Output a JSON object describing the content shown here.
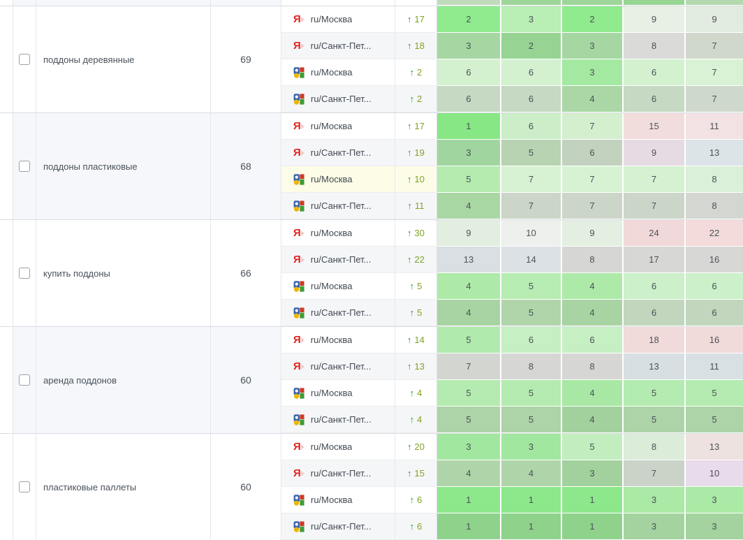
{
  "table": {
    "glyphs": {
      "up_arrow": "↑",
      "yandex_letter": "Я"
    },
    "palette": {
      "change_arrow": "#259b23",
      "change_value": "#7ea324",
      "yandex_red": "#e02420",
      "group_tint": "#f5f7fa",
      "highlight_row": "#fdfce7"
    },
    "partial_top_row": {
      "group_bg": "#f5f7fa",
      "data_cells": [
        "#c0dbbc",
        "#9ed699",
        "#9ed699",
        "#98d593",
        "#b4d9af"
      ]
    },
    "groups": [
      {
        "keyword": "поддоны деревянные",
        "volume": "69",
        "tinted": false,
        "rows": [
          {
            "engine": "yandex",
            "region": "ru/Москва",
            "change": "17",
            "highlight": false,
            "cells": [
              {
                "v": "2",
                "c": "#8feb8d"
              },
              {
                "v": "3",
                "c": "#b9eeb5"
              },
              {
                "v": "2",
                "c": "#8feb8d"
              },
              {
                "v": "9",
                "c": "#e8efe5"
              },
              {
                "v": "9",
                "c": "#e2ebdf"
              }
            ]
          },
          {
            "engine": "yandex",
            "region": "ru/Санкт-Пет...",
            "change": "18",
            "highlight": false,
            "cells": [
              {
                "v": "3",
                "c": "#a6d7a3"
              },
              {
                "v": "2",
                "c": "#97d494"
              },
              {
                "v": "3",
                "c": "#a6d7a3"
              },
              {
                "v": "8",
                "c": "#dadad8"
              },
              {
                "v": "7",
                "c": "#cfd8cb"
              }
            ]
          },
          {
            "engine": "google",
            "region": "ru/Москва",
            "change": "2",
            "highlight": false,
            "cells": [
              {
                "v": "6",
                "c": "#d3f1cf"
              },
              {
                "v": "6",
                "c": "#d3f1cf"
              },
              {
                "v": "3",
                "c": "#a4e9a1"
              },
              {
                "v": "6",
                "c": "#d3f1cf"
              },
              {
                "v": "7",
                "c": "#d9f1d5"
              }
            ]
          },
          {
            "engine": "google",
            "region": "ru/Санкт-Пет...",
            "change": "2",
            "highlight": false,
            "cells": [
              {
                "v": "6",
                "c": "#c6d9c2"
              },
              {
                "v": "6",
                "c": "#c6d9c2"
              },
              {
                "v": "4",
                "c": "#aad7a5"
              },
              {
                "v": "6",
                "c": "#c6d9c2"
              },
              {
                "v": "7",
                "c": "#cfd9cb"
              }
            ]
          }
        ]
      },
      {
        "keyword": "поддоны пластиковые",
        "volume": "68",
        "tinted": true,
        "rows": [
          {
            "engine": "yandex",
            "region": "ru/Москва",
            "change": "17",
            "highlight": false,
            "cells": [
              {
                "v": "1",
                "c": "#87e785"
              },
              {
                "v": "6",
                "c": "#cbeec8"
              },
              {
                "v": "7",
                "c": "#d3efce"
              },
              {
                "v": "15",
                "c": "#f2dddd"
              },
              {
                "v": "11",
                "c": "#f3e2e3"
              }
            ]
          },
          {
            "engine": "yandex",
            "region": "ru/Санкт-Пет...",
            "change": "19",
            "highlight": false,
            "cells": [
              {
                "v": "3",
                "c": "#a1d59f"
              },
              {
                "v": "5",
                "c": "#b7d3b2"
              },
              {
                "v": "6",
                "c": "#c2d2bf"
              },
              {
                "v": "9",
                "c": "#e7dbe3"
              },
              {
                "v": "13",
                "c": "#dce4e8"
              }
            ]
          },
          {
            "engine": "google",
            "region": "ru/Москва",
            "change": "10",
            "highlight": true,
            "cells": [
              {
                "v": "5",
                "c": "#b4ecb0"
              },
              {
                "v": "7",
                "c": "#d7f2d3"
              },
              {
                "v": "7",
                "c": "#d7f2d3"
              },
              {
                "v": "7",
                "c": "#d5f1d1"
              },
              {
                "v": "8",
                "c": "#daf0d8"
              }
            ]
          },
          {
            "engine": "google",
            "region": "ru/Санкт-Пет...",
            "change": "11",
            "highlight": false,
            "cells": [
              {
                "v": "4",
                "c": "#a9d7a4"
              },
              {
                "v": "7",
                "c": "#cbd5c8"
              },
              {
                "v": "7",
                "c": "#cbd5c8"
              },
              {
                "v": "7",
                "c": "#cbd5c8"
              },
              {
                "v": "8",
                "c": "#d3d6d1"
              }
            ]
          }
        ]
      },
      {
        "keyword": "купить поддоны",
        "volume": "66",
        "tinted": false,
        "rows": [
          {
            "engine": "yandex",
            "region": "ru/Москва",
            "change": "30",
            "highlight": false,
            "cells": [
              {
                "v": "9",
                "c": "#e2eedf"
              },
              {
                "v": "10",
                "c": "#eef0ed"
              },
              {
                "v": "9",
                "c": "#e3efe0"
              },
              {
                "v": "24",
                "c": "#f1d8d9"
              },
              {
                "v": "22",
                "c": "#f2dbda"
              }
            ]
          },
          {
            "engine": "yandex",
            "region": "ru/Санкт-Пет...",
            "change": "22",
            "highlight": false,
            "cells": [
              {
                "v": "13",
                "c": "#d9dfe3"
              },
              {
                "v": "14",
                "c": "#dbe1e5"
              },
              {
                "v": "8",
                "c": "#d6d6d4"
              },
              {
                "v": "17",
                "c": "#d7d7d5"
              },
              {
                "v": "16",
                "c": "#d7d7d5"
              }
            ]
          },
          {
            "engine": "google",
            "region": "ru/Москва",
            "change": "5",
            "highlight": false,
            "cells": [
              {
                "v": "4",
                "c": "#adeaa8"
              },
              {
                "v": "5",
                "c": "#b7ecb3"
              },
              {
                "v": "4",
                "c": "#adeaa8"
              },
              {
                "v": "6",
                "c": "#ccf0c9"
              },
              {
                "v": "6",
                "c": "#ccf0c9"
              }
            ]
          },
          {
            "engine": "google",
            "region": "ru/Санкт-Пет...",
            "change": "5",
            "highlight": false,
            "cells": [
              {
                "v": "4",
                "c": "#a7d4a2"
              },
              {
                "v": "5",
                "c": "#b0d5ab"
              },
              {
                "v": "4",
                "c": "#a7d4a2"
              },
              {
                "v": "6",
                "c": "#c1d6bd"
              },
              {
                "v": "6",
                "c": "#c1d6bd"
              }
            ]
          }
        ]
      },
      {
        "keyword": "аренда поддонов",
        "volume": "60",
        "tinted": true,
        "rows": [
          {
            "engine": "yandex",
            "region": "ru/Москва",
            "change": "14",
            "highlight": false,
            "cells": [
              {
                "v": "5",
                "c": "#b1eaad"
              },
              {
                "v": "6",
                "c": "#c7efc4"
              },
              {
                "v": "6",
                "c": "#c7efc4"
              },
              {
                "v": "18",
                "c": "#f0dbda"
              },
              {
                "v": "16",
                "c": "#f0dbda"
              }
            ]
          },
          {
            "engine": "yandex",
            "region": "ru/Санкт-Пет...",
            "change": "13",
            "highlight": false,
            "cells": [
              {
                "v": "7",
                "c": "#d3d5d1"
              },
              {
                "v": "8",
                "c": "#d6d6d4"
              },
              {
                "v": "8",
                "c": "#d6d6d4"
              },
              {
                "v": "13",
                "c": "#d8dfe2"
              },
              {
                "v": "11",
                "c": "#d9e0e3"
              }
            ]
          },
          {
            "engine": "google",
            "region": "ru/Москва",
            "change": "4",
            "highlight": false,
            "cells": [
              {
                "v": "5",
                "c": "#b4ebb0"
              },
              {
                "v": "5",
                "c": "#b4ebb0"
              },
              {
                "v": "4",
                "c": "#a8e8a4"
              },
              {
                "v": "5",
                "c": "#b4ebb0"
              },
              {
                "v": "5",
                "c": "#b4ebb0"
              }
            ]
          },
          {
            "engine": "google",
            "region": "ru/Санкт-Пет...",
            "change": "4",
            "highlight": false,
            "cells": [
              {
                "v": "5",
                "c": "#add3a8"
              },
              {
                "v": "5",
                "c": "#add3a8"
              },
              {
                "v": "4",
                "c": "#a2d19d"
              },
              {
                "v": "5",
                "c": "#add3a8"
              },
              {
                "v": "5",
                "c": "#add3a8"
              }
            ]
          }
        ]
      },
      {
        "keyword": "пластиковые паллеты",
        "volume": "60",
        "tinted": false,
        "rows": [
          {
            "engine": "yandex",
            "region": "ru/Москва",
            "change": "20",
            "highlight": false,
            "cells": [
              {
                "v": "3",
                "c": "#a2e79f"
              },
              {
                "v": "3",
                "c": "#a2e79f"
              },
              {
                "v": "5",
                "c": "#c2eebf"
              },
              {
                "v": "8",
                "c": "#dbecd8"
              },
              {
                "v": "13",
                "c": "#eee2e0"
              }
            ]
          },
          {
            "engine": "yandex",
            "region": "ru/Санкт-Пет...",
            "change": "15",
            "highlight": false,
            "cells": [
              {
                "v": "4",
                "c": "#b0d4aa"
              },
              {
                "v": "4",
                "c": "#b0d4aa"
              },
              {
                "v": "3",
                "c": "#a2d19d"
              },
              {
                "v": "7",
                "c": "#cbd2c8"
              },
              {
                "v": "10",
                "c": "#e8dbeb"
              }
            ]
          },
          {
            "engine": "google",
            "region": "ru/Москва",
            "change": "6",
            "highlight": false,
            "cells": [
              {
                "v": "1",
                "c": "#8de88b"
              },
              {
                "v": "1",
                "c": "#8de88b"
              },
              {
                "v": "1",
                "c": "#8de88b"
              },
              {
                "v": "3",
                "c": "#aae9a6"
              },
              {
                "v": "3",
                "c": "#aae9a6"
              }
            ]
          },
          {
            "engine": "google",
            "region": "ru/Санкт-Пет...",
            "change": "6",
            "highlight": false,
            "cells": [
              {
                "v": "1",
                "c": "#8fd28c"
              },
              {
                "v": "1",
                "c": "#8fd28c"
              },
              {
                "v": "1",
                "c": "#8fd28c"
              },
              {
                "v": "3",
                "c": "#a4d39f"
              },
              {
                "v": "3",
                "c": "#a4d39f"
              }
            ]
          }
        ]
      }
    ]
  }
}
